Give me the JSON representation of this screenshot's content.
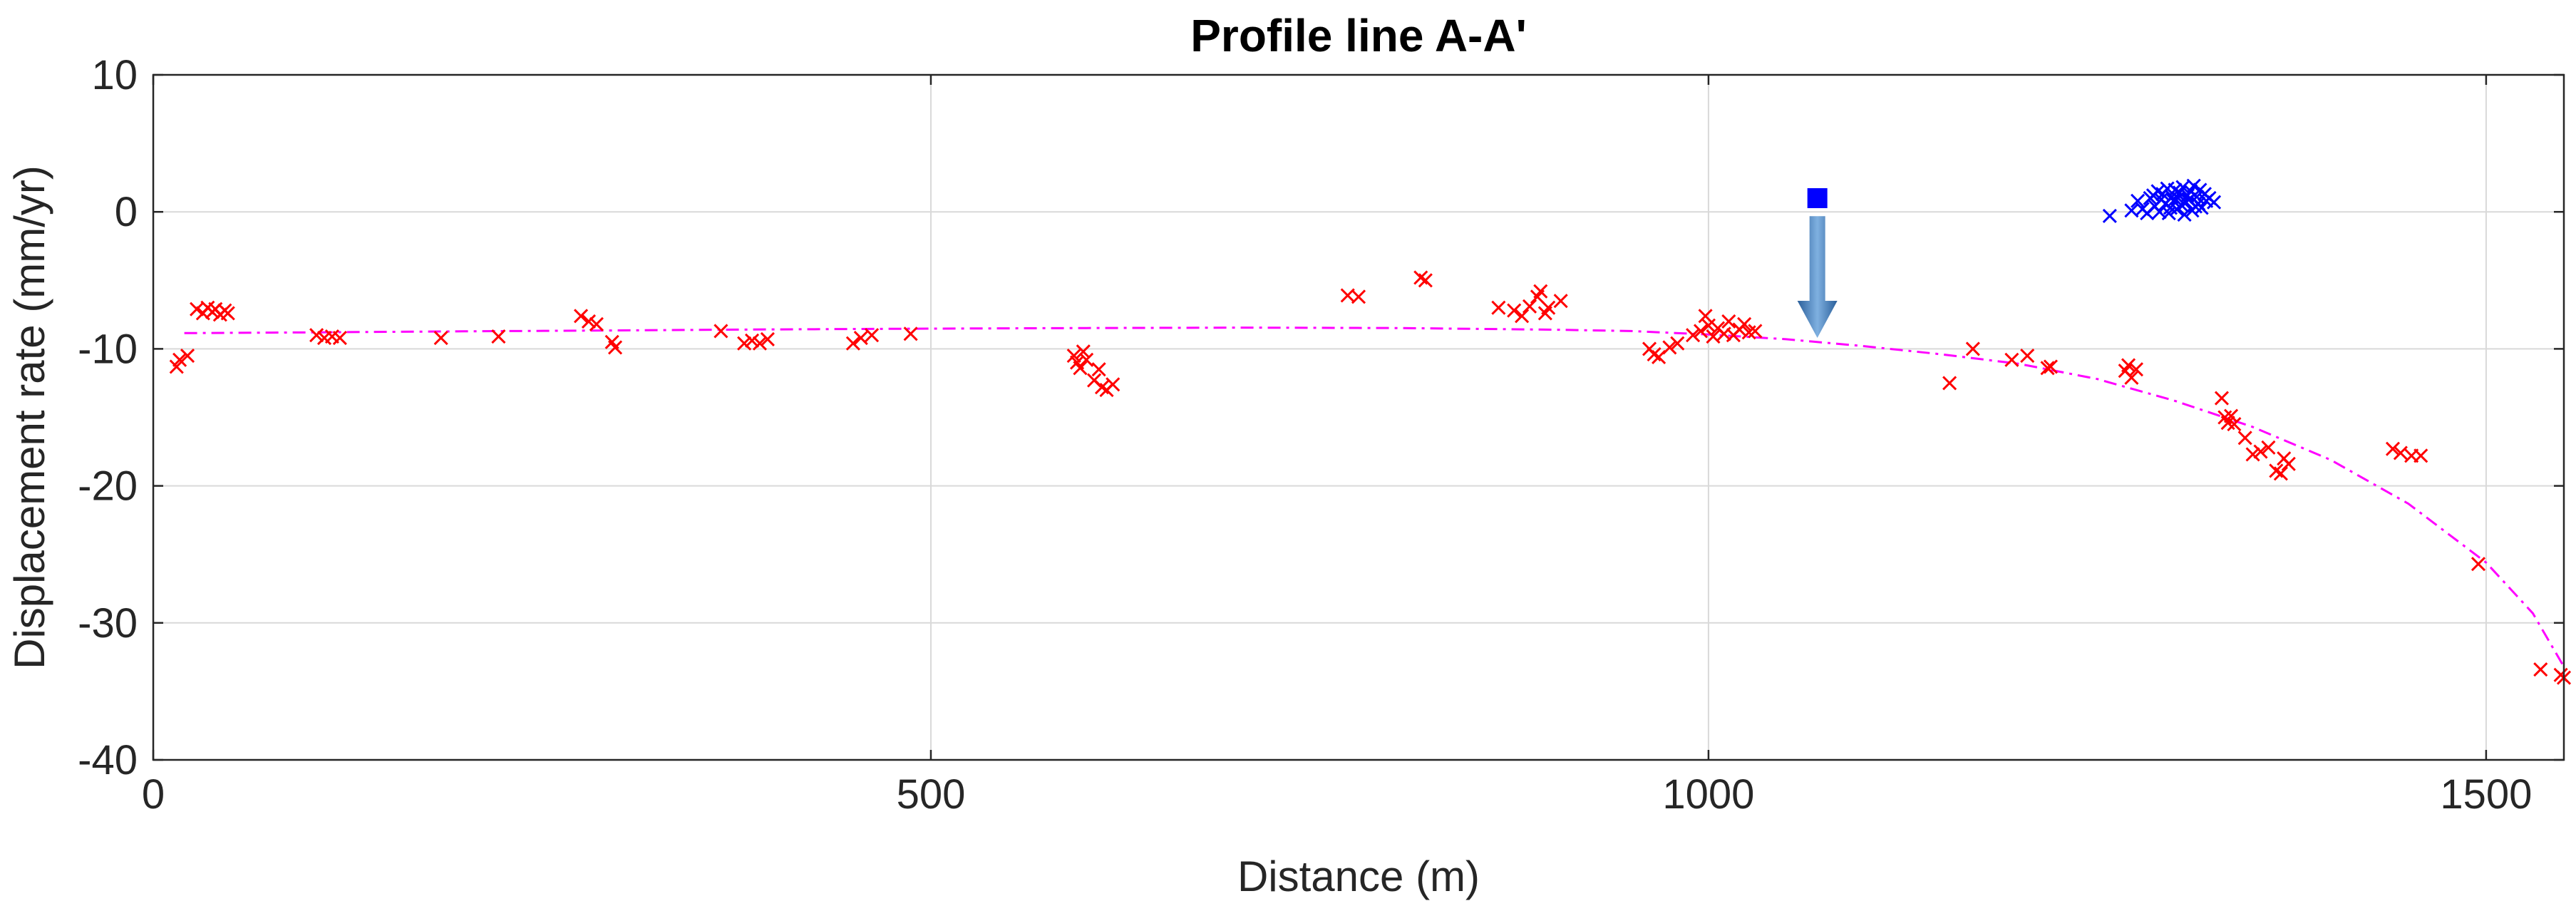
{
  "chart_data": {
    "type": "scatter",
    "title": "Profile line A-A'",
    "xlabel": "Distance (m)",
    "ylabel": "Displacement rate (mm/yr)",
    "xlim": [
      0,
      1550
    ],
    "ylim": [
      -40,
      10
    ],
    "xticks": [
      0,
      500,
      1000,
      1500
    ],
    "yticks": [
      10,
      0,
      -10,
      -20,
      -30,
      -40
    ],
    "grid": true,
    "colors": {
      "red_points": "#ff0000",
      "blue_points": "#0000ff",
      "fit_curve": "#ff00ff",
      "marker": "#0000ff",
      "arrow": "#3a78b8"
    },
    "series": [
      {
        "name": "red-points",
        "marker": "x",
        "points": [
          [
            15,
            -11.3
          ],
          [
            17,
            -10.8
          ],
          [
            22,
            -10.5
          ],
          [
            28,
            -7.1
          ],
          [
            32,
            -7.4
          ],
          [
            35,
            -7.0
          ],
          [
            38,
            -7.3
          ],
          [
            40,
            -7.1
          ],
          [
            43,
            -7.5
          ],
          [
            46,
            -7.2
          ],
          [
            48,
            -7.4
          ],
          [
            105,
            -9.0
          ],
          [
            110,
            -9.2
          ],
          [
            115,
            -9.1
          ],
          [
            120,
            -9.2
          ],
          [
            185,
            -9.2
          ],
          [
            222,
            -9.1
          ],
          [
            275,
            -7.6
          ],
          [
            280,
            -8.0
          ],
          [
            285,
            -8.2
          ],
          [
            295,
            -9.5
          ],
          [
            297,
            -9.9
          ],
          [
            365,
            -8.7
          ],
          [
            380,
            -9.6
          ],
          [
            385,
            -9.4
          ],
          [
            390,
            -9.6
          ],
          [
            395,
            -9.3
          ],
          [
            450,
            -9.6
          ],
          [
            455,
            -9.2
          ],
          [
            462,
            -9.0
          ],
          [
            487,
            -8.9
          ],
          [
            592,
            -10.5
          ],
          [
            594,
            -11.0
          ],
          [
            596,
            -11.4
          ],
          [
            598,
            -10.2
          ],
          [
            600,
            -10.8
          ],
          [
            605,
            -12.3
          ],
          [
            608,
            -11.5
          ],
          [
            610,
            -12.8
          ],
          [
            613,
            -13.0
          ],
          [
            617,
            -12.6
          ],
          [
            768,
            -6.1
          ],
          [
            775,
            -6.2
          ],
          [
            815,
            -4.8
          ],
          [
            818,
            -5.0
          ],
          [
            865,
            -7.0
          ],
          [
            875,
            -7.2
          ],
          [
            880,
            -7.6
          ],
          [
            885,
            -6.9
          ],
          [
            890,
            -6.2
          ],
          [
            892,
            -5.8
          ],
          [
            895,
            -7.4
          ],
          [
            897,
            -7.0
          ],
          [
            905,
            -6.5
          ],
          [
            962,
            -10.0
          ],
          [
            965,
            -10.4
          ],
          [
            968,
            -10.6
          ],
          [
            975,
            -9.9
          ],
          [
            980,
            -9.6
          ],
          [
            990,
            -9.0
          ],
          [
            995,
            -8.7
          ],
          [
            998,
            -7.6
          ],
          [
            1000,
            -8.3
          ],
          [
            1003,
            -9.1
          ],
          [
            1006,
            -8.5
          ],
          [
            1010,
            -8.9
          ],
          [
            1013,
            -8.0
          ],
          [
            1016,
            -9.0
          ],
          [
            1020,
            -8.6
          ],
          [
            1023,
            -8.2
          ],
          [
            1026,
            -8.8
          ],
          [
            1030,
            -8.7
          ],
          [
            1155,
            -12.5
          ],
          [
            1170,
            -10.0
          ],
          [
            1195,
            -10.8
          ],
          [
            1205,
            -10.5
          ],
          [
            1218,
            -11.4
          ],
          [
            1220,
            -11.3
          ],
          [
            1268,
            -11.6
          ],
          [
            1270,
            -11.2
          ],
          [
            1272,
            -12.1
          ],
          [
            1275,
            -11.5
          ],
          [
            1330,
            -13.6
          ],
          [
            1332,
            -15.0
          ],
          [
            1334,
            -15.4
          ],
          [
            1336,
            -14.9
          ],
          [
            1338,
            -15.5
          ],
          [
            1345,
            -16.5
          ],
          [
            1350,
            -17.7
          ],
          [
            1355,
            -17.5
          ],
          [
            1360,
            -17.2
          ],
          [
            1365,
            -18.9
          ],
          [
            1368,
            -19.1
          ],
          [
            1370,
            -18.0
          ],
          [
            1373,
            -18.4
          ],
          [
            1440,
            -17.3
          ],
          [
            1445,
            -17.6
          ],
          [
            1452,
            -17.8
          ],
          [
            1458,
            -17.8
          ],
          [
            1495,
            -25.7
          ],
          [
            1535,
            -33.4
          ],
          [
            1548,
            -33.8
          ],
          [
            1550,
            -34.0
          ]
        ]
      },
      {
        "name": "blue-points",
        "marker": "x",
        "points": [
          [
            1258,
            -0.3
          ],
          [
            1272,
            0.1
          ],
          [
            1276,
            0.8
          ],
          [
            1279,
            0.2
          ],
          [
            1282,
            -0.1
          ],
          [
            1284,
            1.0
          ],
          [
            1286,
            1.2
          ],
          [
            1287,
            0.4
          ],
          [
            1289,
            1.5
          ],
          [
            1290,
            0.0
          ],
          [
            1291,
            0.9
          ],
          [
            1292,
            1.3
          ],
          [
            1294,
            0.6
          ],
          [
            1295,
            1.7
          ],
          [
            1296,
            -0.1
          ],
          [
            1297,
            0.3
          ],
          [
            1298,
            1.1
          ],
          [
            1299,
            0.8
          ],
          [
            1300,
            1.6
          ],
          [
            1301,
            0.2
          ],
          [
            1302,
            1.0
          ],
          [
            1303,
            1.4
          ],
          [
            1304,
            0.5
          ],
          [
            1305,
            1.8
          ],
          [
            1306,
            -0.2
          ],
          [
            1307,
            0.7
          ],
          [
            1308,
            1.2
          ],
          [
            1309,
            0.9
          ],
          [
            1310,
            1.5
          ],
          [
            1311,
            0.1
          ],
          [
            1312,
            1.9
          ],
          [
            1313,
            0.4
          ],
          [
            1314,
            1.1
          ],
          [
            1315,
            0.6
          ],
          [
            1316,
            1.6
          ],
          [
            1317,
            0.3
          ],
          [
            1319,
            1.3
          ],
          [
            1320,
            0.8
          ],
          [
            1322,
            1.0
          ],
          [
            1325,
            0.7
          ]
        ]
      }
    ],
    "fit_curve": {
      "style": "dash-dot",
      "points": [
        [
          20,
          -8.85
        ],
        [
          100,
          -8.8
        ],
        [
          200,
          -8.72
        ],
        [
          300,
          -8.65
        ],
        [
          400,
          -8.58
        ],
        [
          500,
          -8.52
        ],
        [
          600,
          -8.48
        ],
        [
          700,
          -8.45
        ],
        [
          800,
          -8.48
        ],
        [
          900,
          -8.6
        ],
        [
          950,
          -8.7
        ],
        [
          1000,
          -8.95
        ],
        [
          1050,
          -9.3
        ],
        [
          1100,
          -9.8
        ],
        [
          1150,
          -10.4
        ],
        [
          1200,
          -11.1
        ],
        [
          1250,
          -12.2
        ],
        [
          1300,
          -13.8
        ],
        [
          1350,
          -15.7
        ],
        [
          1400,
          -18.1
        ],
        [
          1450,
          -21.3
        ],
        [
          1500,
          -25.6
        ],
        [
          1530,
          -29.3
        ],
        [
          1550,
          -33.2
        ]
      ]
    },
    "annotations": [
      {
        "type": "square-marker",
        "x": 1070,
        "y": 1.0
      },
      {
        "type": "arrow-down",
        "x": 1070,
        "y_from": 0.0,
        "y_to": -9.2
      }
    ]
  }
}
